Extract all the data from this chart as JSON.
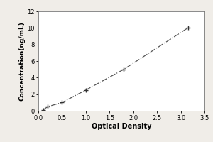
{
  "x_data": [
    0.1,
    0.2,
    0.5,
    1.0,
    1.8,
    3.15
  ],
  "y_data": [
    0.1,
    0.5,
    1.0,
    2.5,
    5.0,
    10.0
  ],
  "xlabel": "Optical Density",
  "ylabel": "Concentration(ng/mL)",
  "xlim": [
    0,
    3.5
  ],
  "ylim": [
    0,
    12
  ],
  "xticks": [
    0,
    0.5,
    1,
    1.5,
    2,
    2.5,
    3,
    3.5
  ],
  "yticks": [
    0,
    2,
    4,
    6,
    8,
    10,
    12
  ],
  "line_color": "#555555",
  "marker_color": "#333333",
  "marker": "+",
  "linestyle": "-.",
  "linewidth": 0.9,
  "markersize": 5,
  "markeredgewidth": 1.0,
  "background_color": "#f0ede8",
  "plot_bg_color": "#ffffff",
  "xlabel_fontsize": 7,
  "ylabel_fontsize": 6.5,
  "tick_fontsize": 6
}
